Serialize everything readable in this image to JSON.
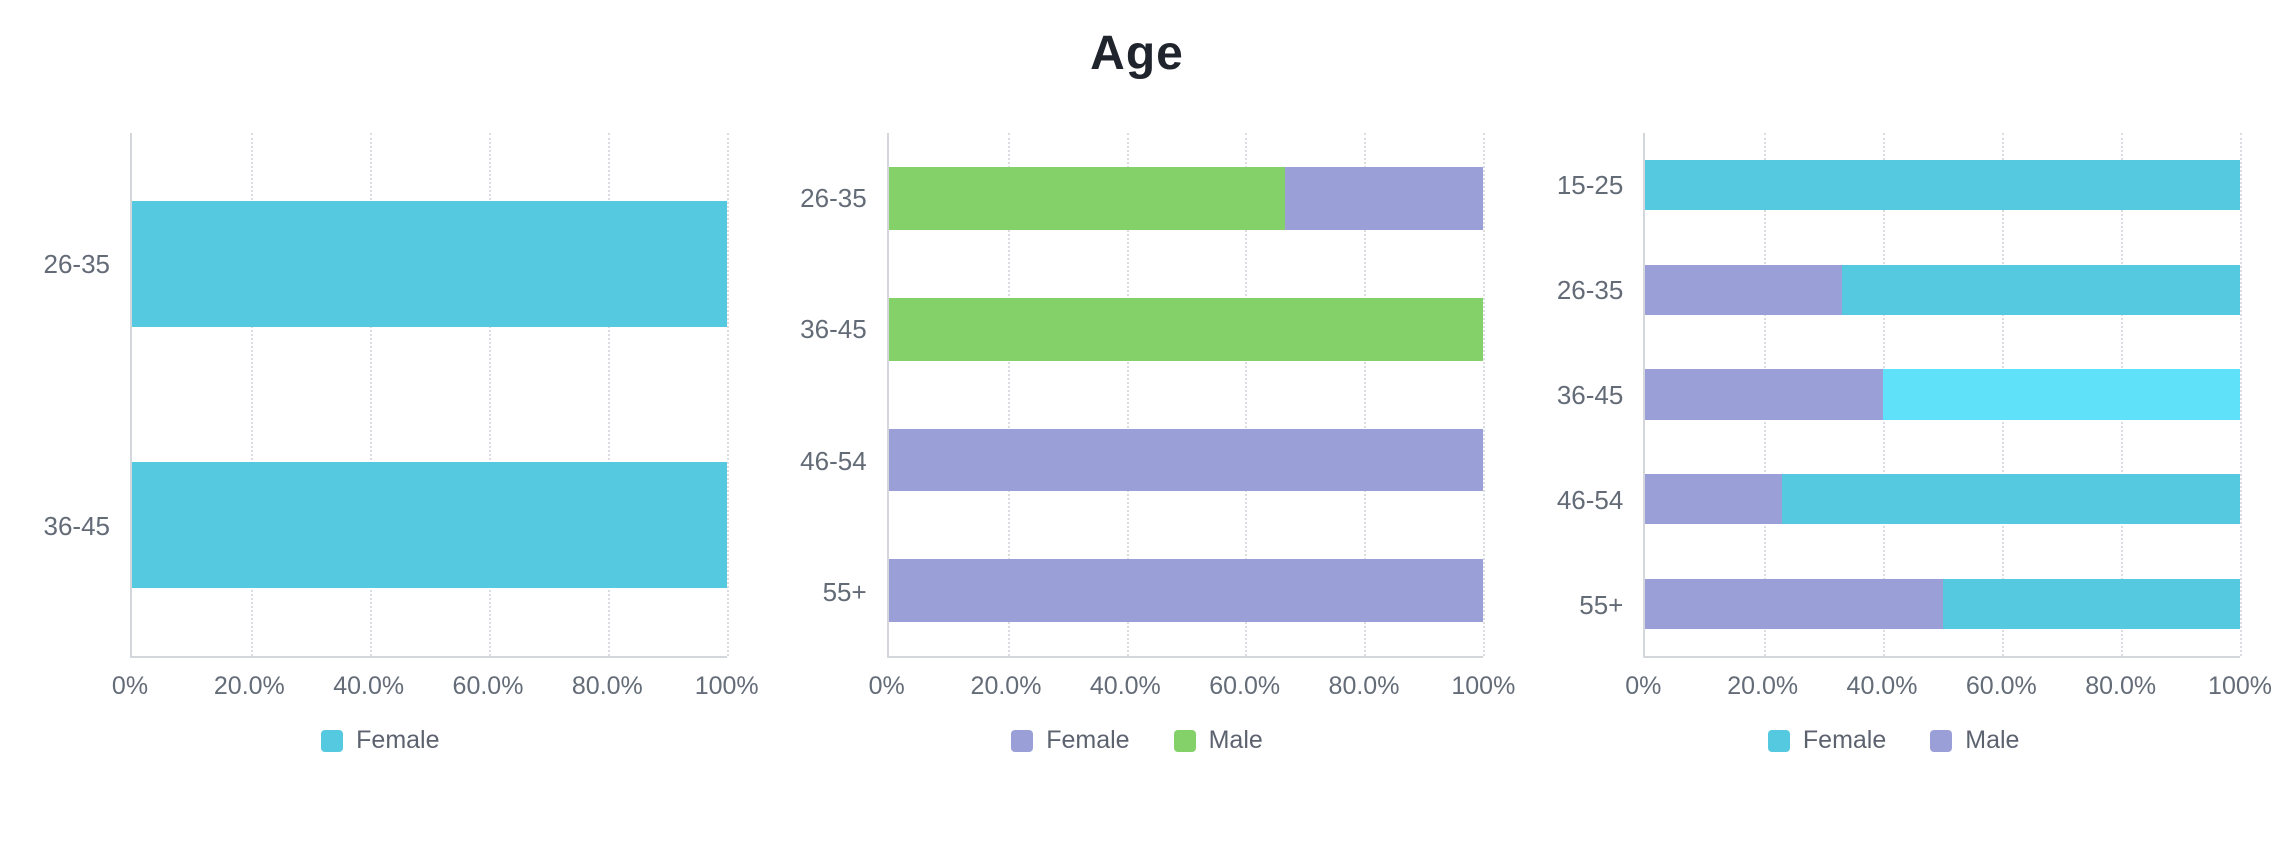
{
  "title": "Age",
  "colors": {
    "cyan": "#55C9DF",
    "cyan_highlight": "#5EE1F9",
    "purple": "#9B9FD8",
    "green": "#84D169",
    "grid": "#D9DDE2",
    "axis": "#D3D7DC",
    "label_text": "#636B77",
    "title_text": "#20252D"
  },
  "chart_data": [
    {
      "type": "bar",
      "subtype": "horizontal-stacked-percent",
      "xlim": [
        0,
        100
      ],
      "grid": "dotted-vertical",
      "legend_position": "bottom",
      "x_ticks": [
        "0%",
        "20.0%",
        "40.0%",
        "60.0%",
        "80.0%",
        "100%"
      ],
      "categories": [
        "26-35",
        "36-45"
      ],
      "legend": [
        {
          "label": "Female",
          "color": "#55C9DF"
        }
      ],
      "bars": [
        {
          "category": "26-35",
          "segments": [
            {
              "series": "Female",
              "value": 100,
              "color": "#55C9DF"
            }
          ]
        },
        {
          "category": "36-45",
          "segments": [
            {
              "series": "Female",
              "value": 100,
              "color": "#55C9DF"
            }
          ]
        }
      ]
    },
    {
      "type": "bar",
      "subtype": "horizontal-stacked-percent",
      "xlim": [
        0,
        100
      ],
      "grid": "dotted-vertical",
      "legend_position": "bottom",
      "x_ticks": [
        "0%",
        "20.0%",
        "40.0%",
        "60.0%",
        "80.0%",
        "100%"
      ],
      "categories": [
        "26-35",
        "36-45",
        "46-54",
        "55+"
      ],
      "legend": [
        {
          "label": "Female",
          "color": "#9B9FD8"
        },
        {
          "label": "Male",
          "color": "#84D169"
        }
      ],
      "bars": [
        {
          "category": "26-35",
          "segments": [
            {
              "series": "Male",
              "value": 66.6,
              "color": "#84D169"
            },
            {
              "series": "Female",
              "value": 33.4,
              "color": "#9B9FD8"
            }
          ]
        },
        {
          "category": "36-45",
          "segments": [
            {
              "series": "Male",
              "value": 100,
              "color": "#84D169"
            }
          ]
        },
        {
          "category": "46-54",
          "segments": [
            {
              "series": "Female",
              "value": 100,
              "color": "#9B9FD8"
            }
          ]
        },
        {
          "category": "55+",
          "segments": [
            {
              "series": "Female",
              "value": 100,
              "color": "#9B9FD8"
            }
          ]
        }
      ]
    },
    {
      "type": "bar",
      "subtype": "horizontal-stacked-percent",
      "xlim": [
        0,
        100
      ],
      "grid": "dotted-vertical",
      "legend_position": "bottom",
      "x_ticks": [
        "0%",
        "20.0%",
        "40.0%",
        "60.0%",
        "80.0%",
        "100%"
      ],
      "categories": [
        "15-25",
        "26-35",
        "36-45",
        "46-54",
        "55+"
      ],
      "legend": [
        {
          "label": "Female",
          "color": "#55C9DF"
        },
        {
          "label": "Male",
          "color": "#9B9FD8"
        }
      ],
      "bars": [
        {
          "category": "15-25",
          "segments": [
            {
              "series": "Female",
              "value": 100,
              "color": "#55C9DF"
            }
          ]
        },
        {
          "category": "26-35",
          "segments": [
            {
              "series": "Male",
              "value": 33,
              "color": "#9B9FD8"
            },
            {
              "series": "Female",
              "value": 67,
              "color": "#55C9DF"
            }
          ]
        },
        {
          "category": "36-45",
          "segments": [
            {
              "series": "Male",
              "value": 40,
              "color": "#9B9FD8"
            },
            {
              "series": "Female",
              "value": 60,
              "color": "#5EE1F9",
              "highlighted": true
            }
          ]
        },
        {
          "category": "46-54",
          "segments": [
            {
              "series": "Male",
              "value": 23,
              "color": "#9B9FD8"
            },
            {
              "series": "Female",
              "value": 77,
              "color": "#55C9DF"
            }
          ]
        },
        {
          "category": "55+",
          "segments": [
            {
              "series": "Male",
              "value": 50,
              "color": "#9B9FD8"
            },
            {
              "series": "Female",
              "value": 50,
              "color": "#55C9DF"
            }
          ]
        }
      ]
    }
  ]
}
